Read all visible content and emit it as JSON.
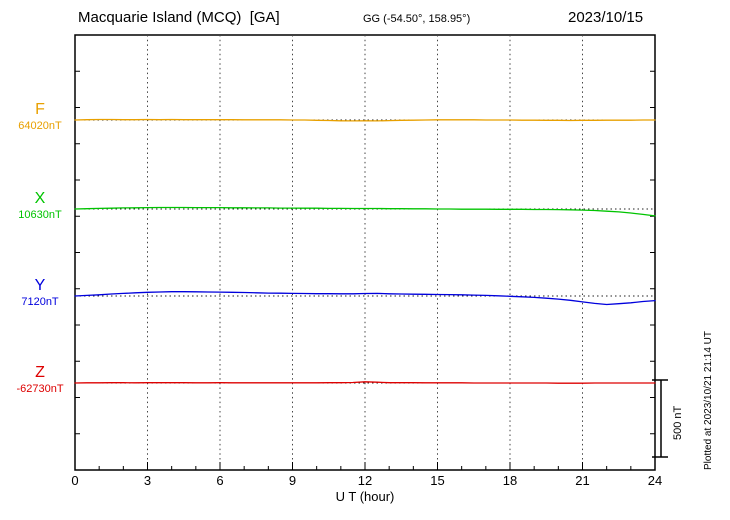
{
  "header": {
    "title": "Macquarie Island (MCQ)  [GA]",
    "coords": "GG (-54.50°, 158.95°)",
    "date": "2023/10/15"
  },
  "footer": {
    "xlabel": "U T (hour)"
  },
  "side_note": {
    "plotted": "Plotted at 2023/10/21 21:14 UT"
  },
  "scale_bar": {
    "label": "500 nT",
    "span_nT": 500
  },
  "chart_data": {
    "type": "line",
    "title": "Macquarie Island (MCQ) [GA] magnetogram",
    "date": "2023/10/15",
    "xlabel": "U T (hour)",
    "xlim": [
      0,
      24
    ],
    "x_ticks": [
      0,
      3,
      6,
      9,
      12,
      15,
      18,
      21,
      24
    ],
    "x_tick_labels": [
      "0",
      "3",
      "6",
      "9",
      "12",
      "15",
      "18",
      "21",
      "24"
    ],
    "x_step_hours": 0.5,
    "grid": "vertical dotted lines at 3-hour intervals; dotted horizontal baseline for each trace",
    "legend_position": "left margin, one label per trace",
    "series": [
      {
        "name": "F",
        "baseline_label": "64020nT",
        "baseline_nT": 64020,
        "color": "#e8a000",
        "offsets_nT": [
          0,
          2,
          3,
          3,
          2,
          2,
          3,
          2,
          3,
          2,
          2,
          2,
          2,
          2,
          1,
          1,
          1,
          1,
          0,
          0,
          -2,
          -3,
          -5,
          -6,
          -5,
          -6,
          -4,
          -2,
          -1,
          0,
          1,
          1,
          1,
          1,
          0,
          0,
          0,
          -1,
          -1,
          -2,
          -2,
          -3,
          -2,
          -2,
          -1,
          -1,
          -1,
          0,
          0
        ]
      },
      {
        "name": "X",
        "baseline_label": "10630nT",
        "baseline_nT": 10630,
        "color": "#00c400",
        "offsets_nT": [
          0,
          2,
          4,
          5,
          7,
          8,
          9,
          10,
          10,
          10,
          9,
          9,
          9,
          8,
          8,
          7,
          7,
          6,
          6,
          5,
          5,
          4,
          4,
          3,
          3,
          3,
          2,
          2,
          1,
          1,
          0,
          0,
          -1,
          -1,
          -1,
          -2,
          -2,
          -2,
          -3,
          -3,
          -4,
          -5,
          -7,
          -10,
          -14,
          -19,
          -26,
          -35,
          -45
        ]
      },
      {
        "name": "Y",
        "baseline_label": "7120nT",
        "baseline_nT": 7120,
        "color": "#0000dd",
        "offsets_nT": [
          0,
          4,
          8,
          13,
          17,
          21,
          24,
          26,
          28,
          28,
          27,
          26,
          25,
          24,
          23,
          21,
          19,
          18,
          17,
          16,
          15,
          15,
          14,
          14,
          16,
          17,
          14,
          13,
          12,
          11,
          10,
          9,
          8,
          6,
          4,
          1,
          -2,
          -5,
          -9,
          -14,
          -20,
          -28,
          -38,
          -48,
          -55,
          -50,
          -44,
          -36,
          -30
        ]
      },
      {
        "name": "Z",
        "baseline_label": "-62730nT",
        "baseline_nT": -62730,
        "color": "#dd0000",
        "offsets_nT": [
          0,
          1,
          1,
          2,
          2,
          1,
          2,
          2,
          2,
          2,
          1,
          1,
          2,
          1,
          1,
          1,
          1,
          1,
          1,
          1,
          1,
          2,
          2,
          3,
          8,
          5,
          2,
          2,
          2,
          1,
          1,
          1,
          1,
          0,
          0,
          0,
          0,
          0,
          0,
          0,
          -1,
          -1,
          -1,
          0,
          0,
          0,
          0,
          0,
          0
        ]
      }
    ]
  }
}
